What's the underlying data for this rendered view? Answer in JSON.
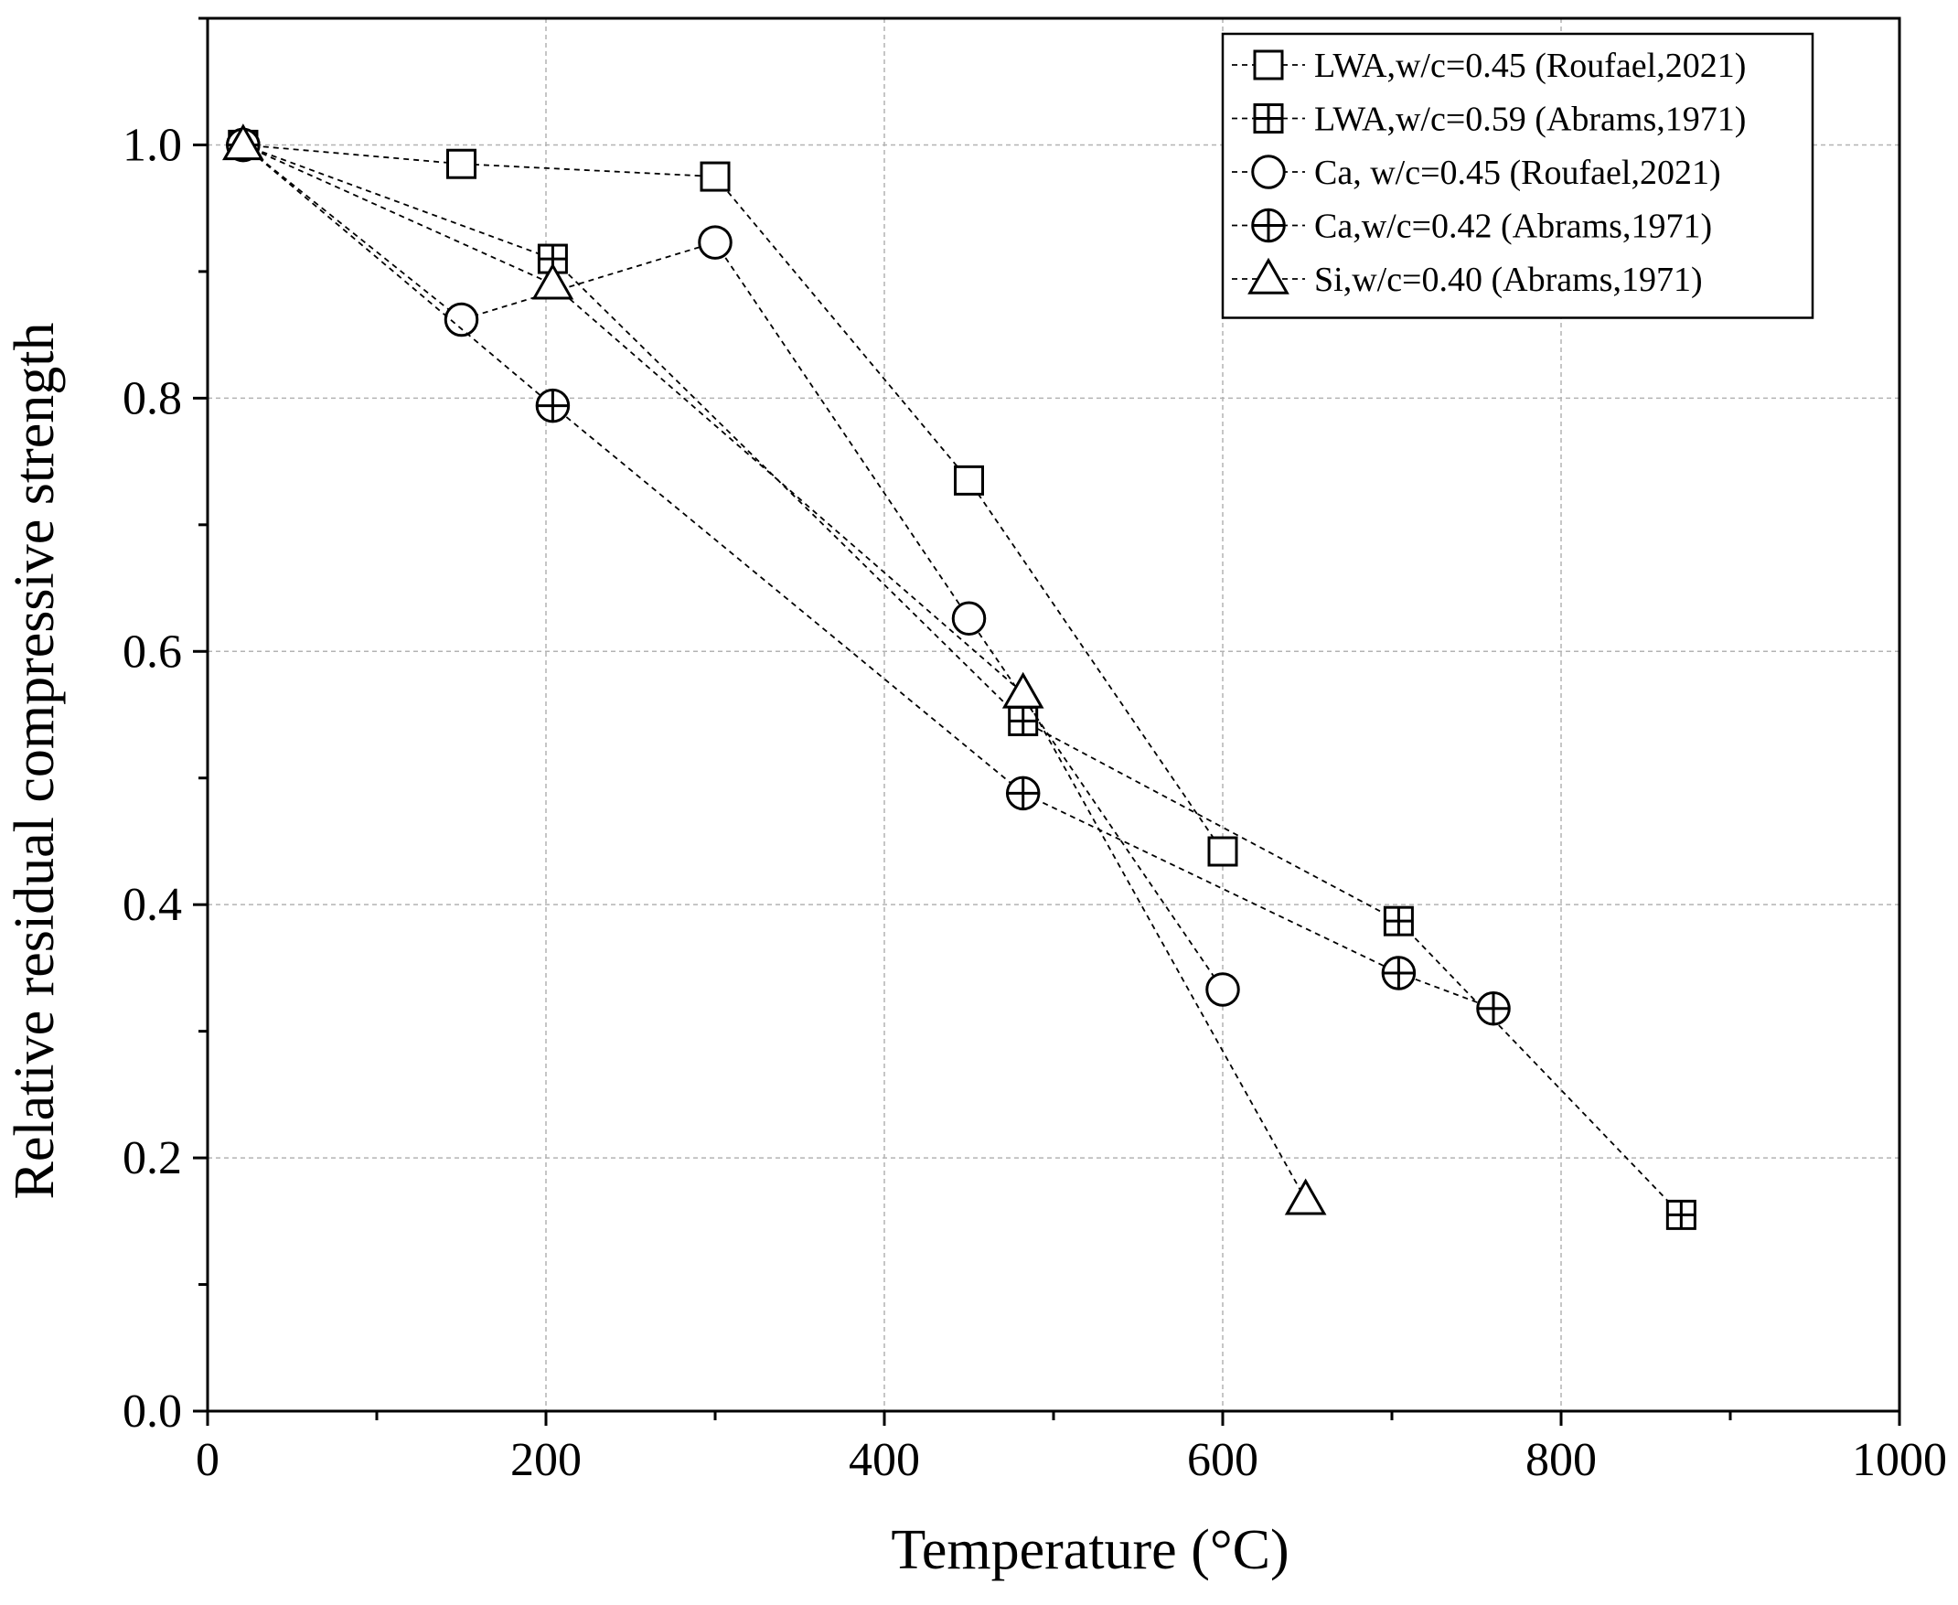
{
  "chart_data": {
    "type": "line",
    "title": "",
    "xlabel": "Temperature (°C)",
    "ylabel": "Relative residual compressive strength",
    "xlim": [
      0,
      1000
    ],
    "ylim": [
      0,
      1.1
    ],
    "xticks": [
      0,
      200,
      400,
      600,
      800,
      1000
    ],
    "xtick_labels": [
      "0",
      "200",
      "400",
      "600",
      "800",
      "1000"
    ],
    "yticks": [
      0.0,
      0.2,
      0.4,
      0.6,
      0.8,
      1.0
    ],
    "ytick_labels": [
      "0.0",
      "0.2",
      "0.4",
      "0.6",
      "0.8",
      "1.0"
    ],
    "grid": true,
    "line_style": "dashed",
    "legend_position": "top-right",
    "series": [
      {
        "name": "LWA,w/c=0.45 (Roufael,2021)",
        "marker": "square",
        "x": [
          21,
          150,
          300,
          450,
          600
        ],
        "y": [
          1.0,
          0.985,
          0.975,
          0.735,
          0.442
        ]
      },
      {
        "name": "LWA,w/c=0.59 (Abrams,1971)",
        "marker": "square-plus",
        "x": [
          21,
          204,
          482,
          704,
          871
        ],
        "y": [
          1.0,
          0.91,
          0.545,
          0.387,
          0.155
        ]
      },
      {
        "name": "Ca, w/c=0.45 (Roufael,2021)",
        "marker": "circle",
        "x": [
          21,
          150,
          300,
          450,
          600
        ],
        "y": [
          1.0,
          0.862,
          0.923,
          0.626,
          0.333
        ]
      },
      {
        "name": "Ca,w/c=0.42 (Abrams,1971)",
        "marker": "circle-plus",
        "x": [
          21,
          204,
          482,
          704,
          760
        ],
        "y": [
          1.0,
          0.794,
          0.488,
          0.346,
          0.318
        ]
      },
      {
        "name": "Si,w/c=0.40 (Abrams,1971)",
        "marker": "triangle",
        "x": [
          21,
          204,
          482,
          649
        ],
        "y": [
          1.0,
          0.89,
          0.567,
          0.167
        ]
      }
    ]
  }
}
